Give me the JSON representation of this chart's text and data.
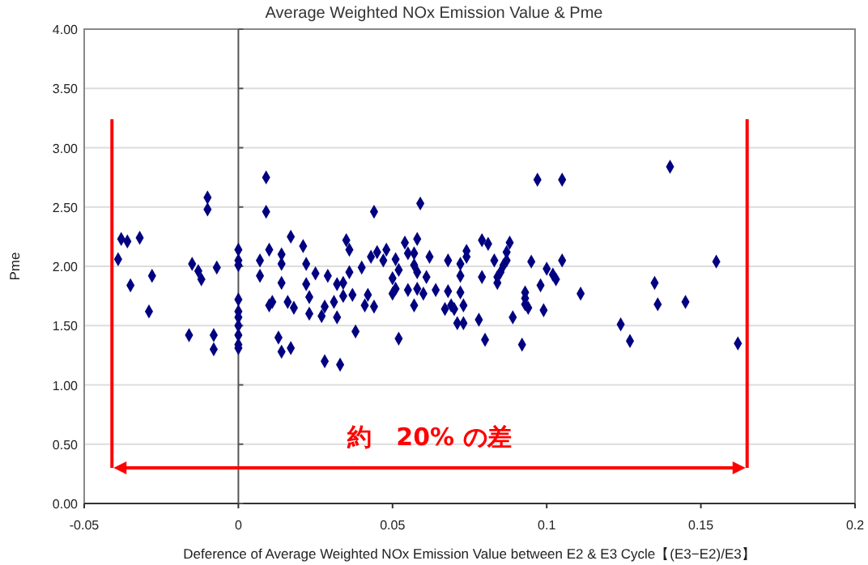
{
  "chart_data": {
    "type": "scatter",
    "title": "Average Weighted NOx Emission Value & Pme",
    "xlabel": "Deference of Average Weighted NOx Emission Value between E2 & E3 Cycle【(E3−E2)/E3】",
    "ylabel": "Pme",
    "x": [
      -0.039,
      -0.038,
      -0.036,
      -0.032,
      -0.035,
      -0.028,
      -0.029,
      -0.01,
      -0.01,
      -0.015,
      -0.013,
      -0.012,
      -0.007,
      -0.016,
      -0.008,
      -0.008,
      0,
      0,
      0,
      0,
      0,
      0,
      0,
      0,
      0,
      0,
      0.007,
      0.007,
      0.009,
      0.009,
      0.01,
      0.01,
      0.011,
      0.013,
      0.014,
      0.014,
      0.014,
      0.014,
      0.016,
      0.017,
      0.017,
      0.018,
      0.021,
      0.022,
      0.022,
      0.023,
      0.023,
      0.025,
      0.027,
      0.028,
      0.028,
      0.029,
      0.031,
      0.032,
      0.032,
      0.033,
      0.034,
      0.035,
      0.036,
      0.036,
      0.034,
      0.038,
      0.037,
      0.04,
      0.042,
      0.041,
      0.044,
      0.043,
      0.045,
      0.048,
      0.047,
      0.044,
      0.05,
      0.051,
      0.05,
      0.051,
      0.052,
      0.052,
      0.054,
      0.055,
      0.055,
      0.057,
      0.057,
      0.058,
      0.058,
      0.057,
      0.058,
      0.059,
      0.06,
      0.061,
      0.062,
      0.064,
      0.067,
      0.068,
      0.068,
      0.069,
      0.07,
      0.072,
      0.072,
      0.072,
      0.073,
      0.071,
      0.073,
      0.074,
      0.074,
      0.078,
      0.079,
      0.079,
      0.081,
      0.08,
      0.083,
      0.084,
      0.084,
      0.085,
      0.086,
      0.087,
      0.087,
      0.088,
      0.089,
      0.092,
      0.093,
      0.093,
      0.093,
      0.094,
      0.095,
      0.097,
      0.098,
      0.099,
      0.1,
      0.102,
      0.103,
      0.105,
      0.105,
      0.111,
      0.124,
      0.127,
      0.135,
      0.136,
      0.14,
      0.145,
      0.155,
      0.162
    ],
    "series": [
      {
        "color": "#000080",
        "values": [
          2.06,
          2.23,
          2.21,
          2.24,
          1.84,
          1.92,
          1.62,
          2.58,
          2.48,
          2.02,
          1.96,
          1.89,
          1.99,
          1.42,
          1.42,
          1.3,
          2.14,
          2.05,
          2.01,
          1.72,
          1.62,
          1.57,
          1.5,
          1.42,
          1.34,
          1.31,
          2.05,
          1.92,
          2.75,
          2.46,
          2.14,
          1.67,
          1.7,
          1.4,
          1.28,
          2.1,
          2.02,
          1.86,
          1.7,
          1.31,
          2.25,
          1.65,
          2.17,
          2.02,
          1.85,
          1.74,
          1.6,
          1.94,
          1.58,
          1.2,
          1.66,
          1.92,
          1.7,
          1.85,
          1.57,
          1.17,
          1.86,
          2.22,
          2.14,
          1.95,
          1.75,
          1.45,
          1.76,
          1.99,
          1.76,
          1.67,
          1.66,
          2.08,
          2.12,
          2.14,
          2.05,
          2.46,
          1.9,
          1.81,
          1.77,
          2.06,
          1.97,
          1.39,
          2.2,
          2.11,
          1.8,
          2.11,
          2.01,
          1.95,
          1.81,
          1.67,
          2.23,
          2.53,
          1.77,
          1.91,
          2.08,
          1.8,
          1.64,
          2.05,
          1.79,
          1.67,
          1.64,
          1.78,
          1.92,
          2.02,
          1.67,
          1.52,
          1.52,
          2.13,
          2.08,
          1.55,
          1.91,
          2.22,
          2.19,
          1.38,
          2.05,
          1.91,
          1.86,
          1.95,
          2.01,
          2.05,
          2.12,
          2.2,
          1.57,
          1.34,
          1.68,
          1.73,
          1.78,
          1.65,
          2.04,
          2.73,
          1.84,
          1.63,
          1.98,
          1.93,
          1.89,
          2.73,
          2.05,
          1.77,
          1.51,
          1.37,
          1.86,
          1.68,
          2.84,
          1.7,
          2.04,
          1.35
        ]
      }
    ],
    "xlim": [
      -0.05,
      0.2
    ],
    "xticks": [
      -0.05,
      0,
      0.05,
      0.1,
      0.15,
      0.2
    ],
    "ylim": [
      0,
      4
    ],
    "yticks": [
      {
        "value": 0,
        "label": "0.00"
      },
      {
        "value": 0.5,
        "label": "0.50"
      },
      {
        "value": 1,
        "label": "1.00"
      },
      {
        "value": 1.5,
        "label": "1.50"
      },
      {
        "value": 2,
        "label": "2.00"
      },
      {
        "value": 2.5,
        "label": "2.50"
      },
      {
        "value": 3,
        "label": "3.00"
      },
      {
        "value": 3.5,
        "label": "3.50"
      },
      {
        "value": 4,
        "label": "4.00"
      }
    ],
    "grid": "y",
    "marker": "diamond",
    "ref_lines": [
      {
        "axis": "x",
        "value": -0.041,
        "color": "#ff0000"
      },
      {
        "axis": "x",
        "value": 0.165,
        "color": "#ff0000"
      }
    ],
    "annotations": [
      "約　20% の差"
    ]
  }
}
